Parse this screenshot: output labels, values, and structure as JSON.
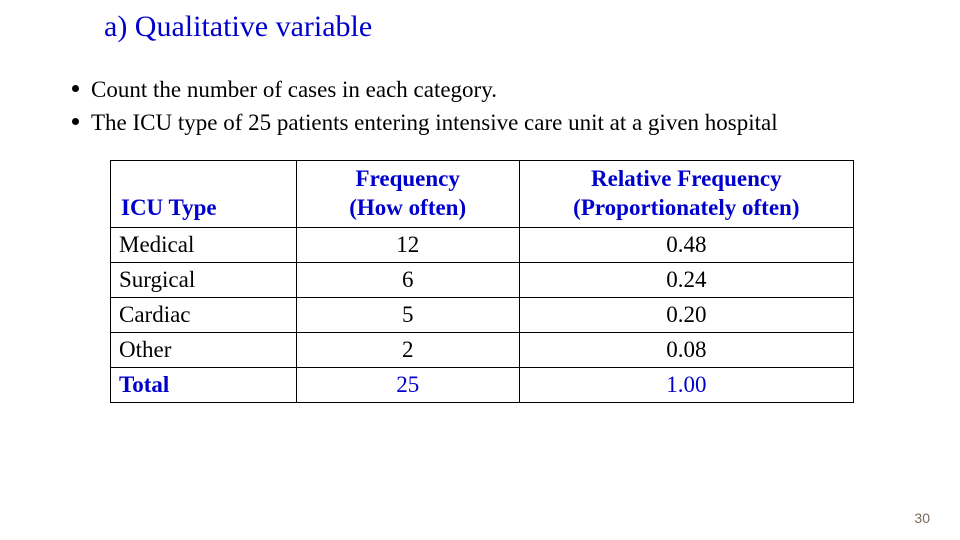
{
  "title": "a) Qualitative variable",
  "bullets": [
    " Count the number of cases in each category.",
    "The ICU type of 25 patients entering intensive care unit at a given hospital"
  ],
  "table": {
    "headers": {
      "col1": "ICU Type",
      "col2_line1": "Frequency",
      "col2_line2": "(How often)",
      "col3_line1": "Relative Frequency",
      "col3_line2": "(Proportionately often)"
    },
    "rows": [
      {
        "cat": "Medical",
        "freq": "12",
        "rel": "0.48"
      },
      {
        "cat": "Surgical",
        "freq": "6",
        "rel": "0.24"
      },
      {
        "cat": "Cardiac",
        "freq": "5",
        "rel": "0.20"
      },
      {
        "cat": "Other",
        "freq": "2",
        "rel": "0.08"
      }
    ],
    "total": {
      "cat": "Total",
      "freq": "25",
      "rel": "1.00"
    },
    "header_color": "#0000cc",
    "text_color": "#000000",
    "border_color": "#000000"
  },
  "page_number": "30"
}
